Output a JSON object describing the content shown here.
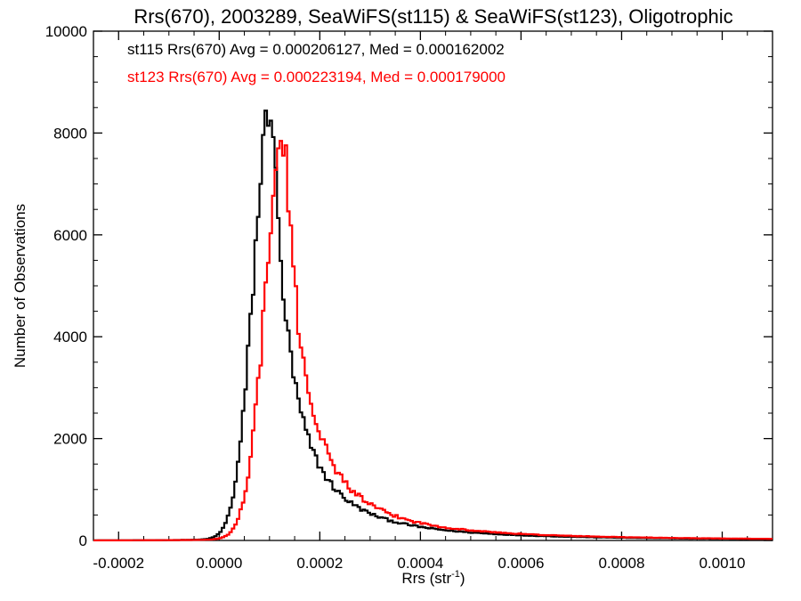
{
  "chart_data": {
    "type": "histogram-step",
    "title": "Rrs(670), 2003289, SeaWiFS(st115) & SeaWiFS(st123), Oligotrophic",
    "xlabel": "Rrs (str",
    "xlabel_sup": "-1",
    "xlabel_close": ")",
    "ylabel": "Number of Observations",
    "xlim": [
      -0.00025,
      0.0011
    ],
    "ylim": [
      0,
      10000
    ],
    "x_ticks": [
      -0.0002,
      0.0,
      0.0002,
      0.0004,
      0.0006,
      0.0008,
      0.001
    ],
    "x_tick_labels": [
      "-0.0002",
      "0.0000",
      "0.0002",
      "0.0004",
      "0.0006",
      "0.0008",
      "0.0010"
    ],
    "y_ticks": [
      0,
      2000,
      4000,
      6000,
      8000,
      10000
    ],
    "y_tick_labels": [
      "0",
      "2000",
      "4000",
      "6000",
      "8000",
      "10000"
    ],
    "legend_position": "top-left",
    "series": [
      {
        "name": "st115",
        "legend": "st115 Rrs(670) Avg = 0.000206127, Med = 0.000162002",
        "color": "#000000",
        "peak_x": 0.000105,
        "peak_y": 8600,
        "sigma_left": 3.6e-05,
        "decay_right": 8.5e-05,
        "noise": 0.06
      },
      {
        "name": "st123",
        "legend": "st123 Rrs(670) Avg = 0.000223194, Med = 0.000179000",
        "color": "#ff0000",
        "peak_x": 0.00013,
        "peak_y": 7900,
        "sigma_left": 3.8e-05,
        "decay_right": 9.5e-05,
        "noise": 0.06
      }
    ],
    "bin_width": 5e-06
  }
}
